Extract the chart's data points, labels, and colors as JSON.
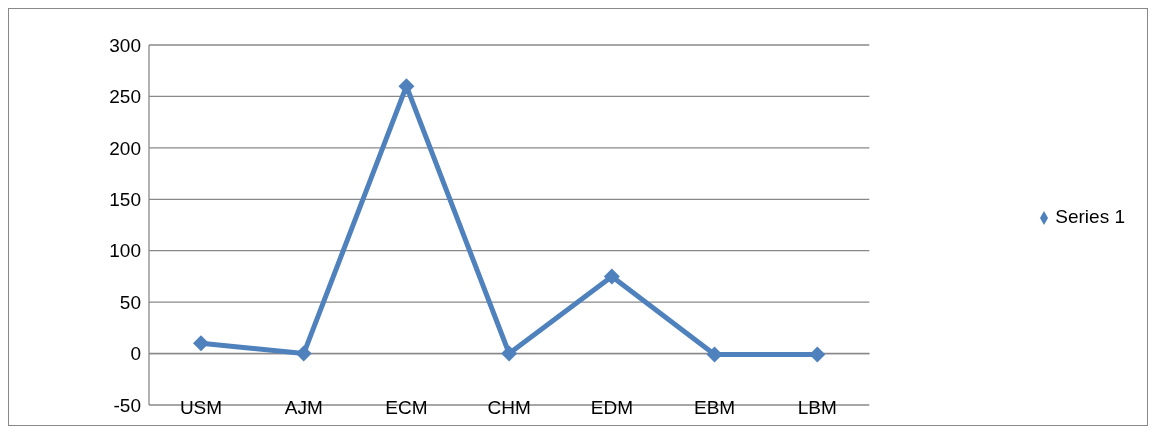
{
  "chart_data": {
    "type": "line",
    "categories": [
      "USM",
      "AJM",
      "ECM",
      "CHM",
      "EDM",
      "EBM",
      "LBM"
    ],
    "series": [
      {
        "name": "Series 1",
        "color": "#4f81bd",
        "values": [
          10,
          0,
          260,
          0,
          75,
          -1,
          -1
        ]
      }
    ],
    "ylim": [
      -50,
      300
    ],
    "yticks": [
      -50,
      0,
      50,
      100,
      150,
      200,
      250,
      300
    ],
    "grid": "y",
    "legend": "right",
    "marker": "diamond",
    "line_style": "solid"
  }
}
